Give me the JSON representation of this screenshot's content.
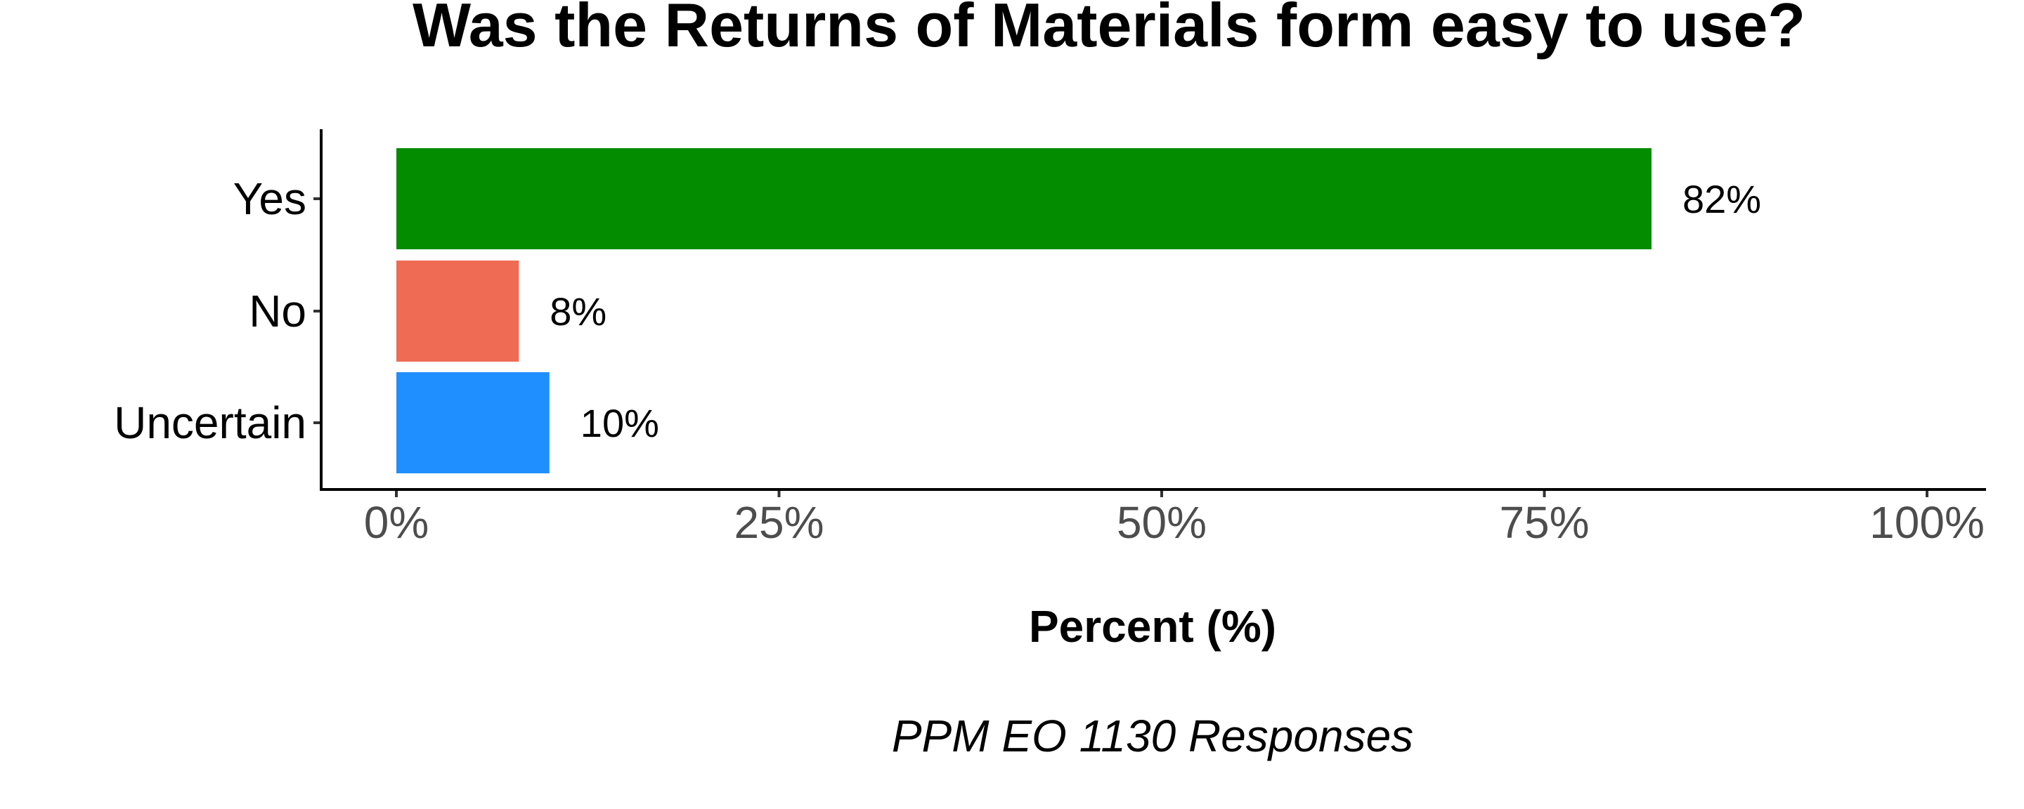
{
  "chart_data": {
    "type": "bar",
    "orientation": "horizontal",
    "title": "Was the Returns of Materials form easy to use?",
    "xlabel": "Percent (%)",
    "ylabel": "",
    "caption": "PPM EO 1130 Responses",
    "categories": [
      "Yes",
      "No",
      "Uncertain"
    ],
    "values": [
      82,
      8,
      10
    ],
    "data_labels": [
      "82%",
      "8%",
      "10%"
    ],
    "colors": [
      "#038c00",
      "#ef6b53",
      "#1f8fff"
    ],
    "xlim": [
      0,
      100
    ],
    "x_ticks": [
      0,
      25,
      50,
      75,
      100
    ],
    "x_tick_labels": [
      "0%",
      "25%",
      "50%",
      "75%",
      "100%"
    ],
    "grid": false,
    "legend": "none"
  }
}
